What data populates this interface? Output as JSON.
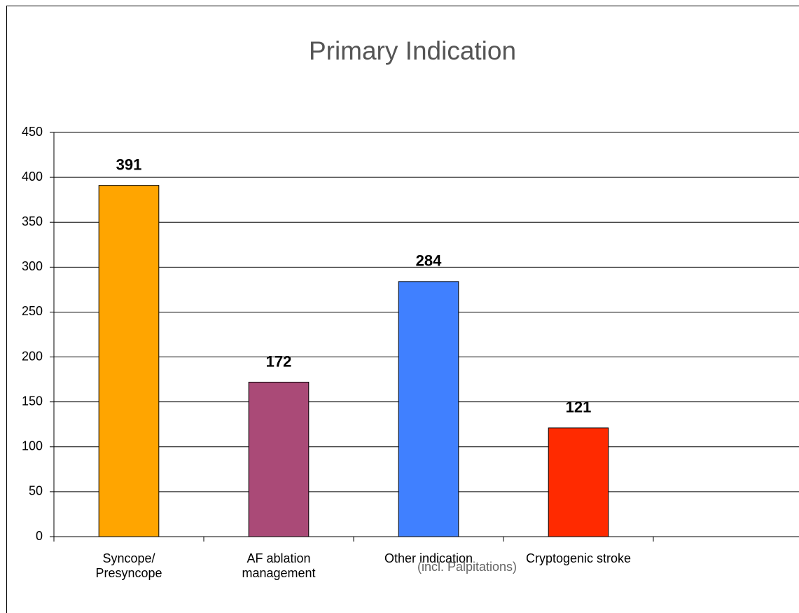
{
  "chart_data": {
    "type": "bar",
    "title": "Primary Indication",
    "categories": [
      "Syncope/\nPresyncope",
      "AF ablation\nmanagement",
      "Other indication",
      "Cryptogenic stroke",
      null
    ],
    "values": [
      391,
      172,
      284,
      121,
      null
    ],
    "colors": [
      "#ffa500",
      "#aa4a77",
      "#4080ff",
      "#ff2a00",
      null
    ],
    "annotations": [
      {
        "category": 2,
        "text": "(incl. Palpitations)"
      }
    ],
    "ylim": [
      0,
      450
    ],
    "yticks": [
      0,
      50,
      100,
      150,
      200,
      250,
      300,
      350,
      400,
      450
    ],
    "grid": true
  }
}
